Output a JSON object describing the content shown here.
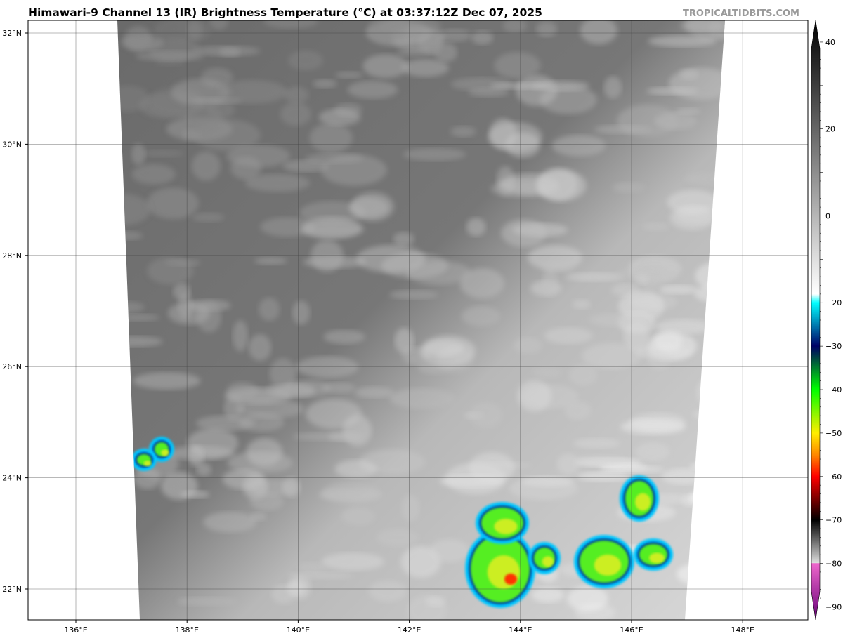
{
  "title": "Himawari-9 Channel 13 (IR) Brightness Temperature (°C) at 03:37:12Z Dec 07, 2025",
  "watermark": "TROPICALTIDBITS.COM",
  "map": {
    "lon_labels": [
      "136°E",
      "138°E",
      "140°E",
      "142°E",
      "144°E",
      "146°E",
      "148°E"
    ],
    "lat_labels": [
      "32°N",
      "30°N",
      "28°N",
      "26°N",
      "24°N",
      "22°N"
    ],
    "lon_values": [
      136,
      138,
      140,
      142,
      144,
      146,
      148
    ],
    "lat_values": [
      32,
      30,
      28,
      26,
      24,
      22
    ]
  },
  "colorbar": {
    "tick_labels": [
      "40",
      "20",
      "0",
      "−20",
      "−30",
      "−40",
      "−50",
      "−60",
      "−70",
      "−80",
      "−90"
    ],
    "tick_values": [
      40,
      20,
      0,
      -20,
      -30,
      -40,
      -50,
      -60,
      -70,
      -80,
      -90
    ],
    "range": [
      -93,
      45
    ],
    "stops": [
      {
        "v": 45,
        "c": "#000000"
      },
      {
        "v": -18,
        "c": "#ffffff"
      },
      {
        "v": -20,
        "c": "#00ffff"
      },
      {
        "v": -30,
        "c": "#000066"
      },
      {
        "v": -33,
        "c": "#004d40"
      },
      {
        "v": -40,
        "c": "#00ff00"
      },
      {
        "v": -50,
        "c": "#ffee00"
      },
      {
        "v": -55,
        "c": "#ff8800"
      },
      {
        "v": -60,
        "c": "#ff0000"
      },
      {
        "v": -70,
        "c": "#000000"
      },
      {
        "v": -79.9,
        "c": "#dddddd"
      },
      {
        "v": -80,
        "c": "#ee66cc"
      },
      {
        "v": -93,
        "c": "#660077"
      }
    ]
  }
}
